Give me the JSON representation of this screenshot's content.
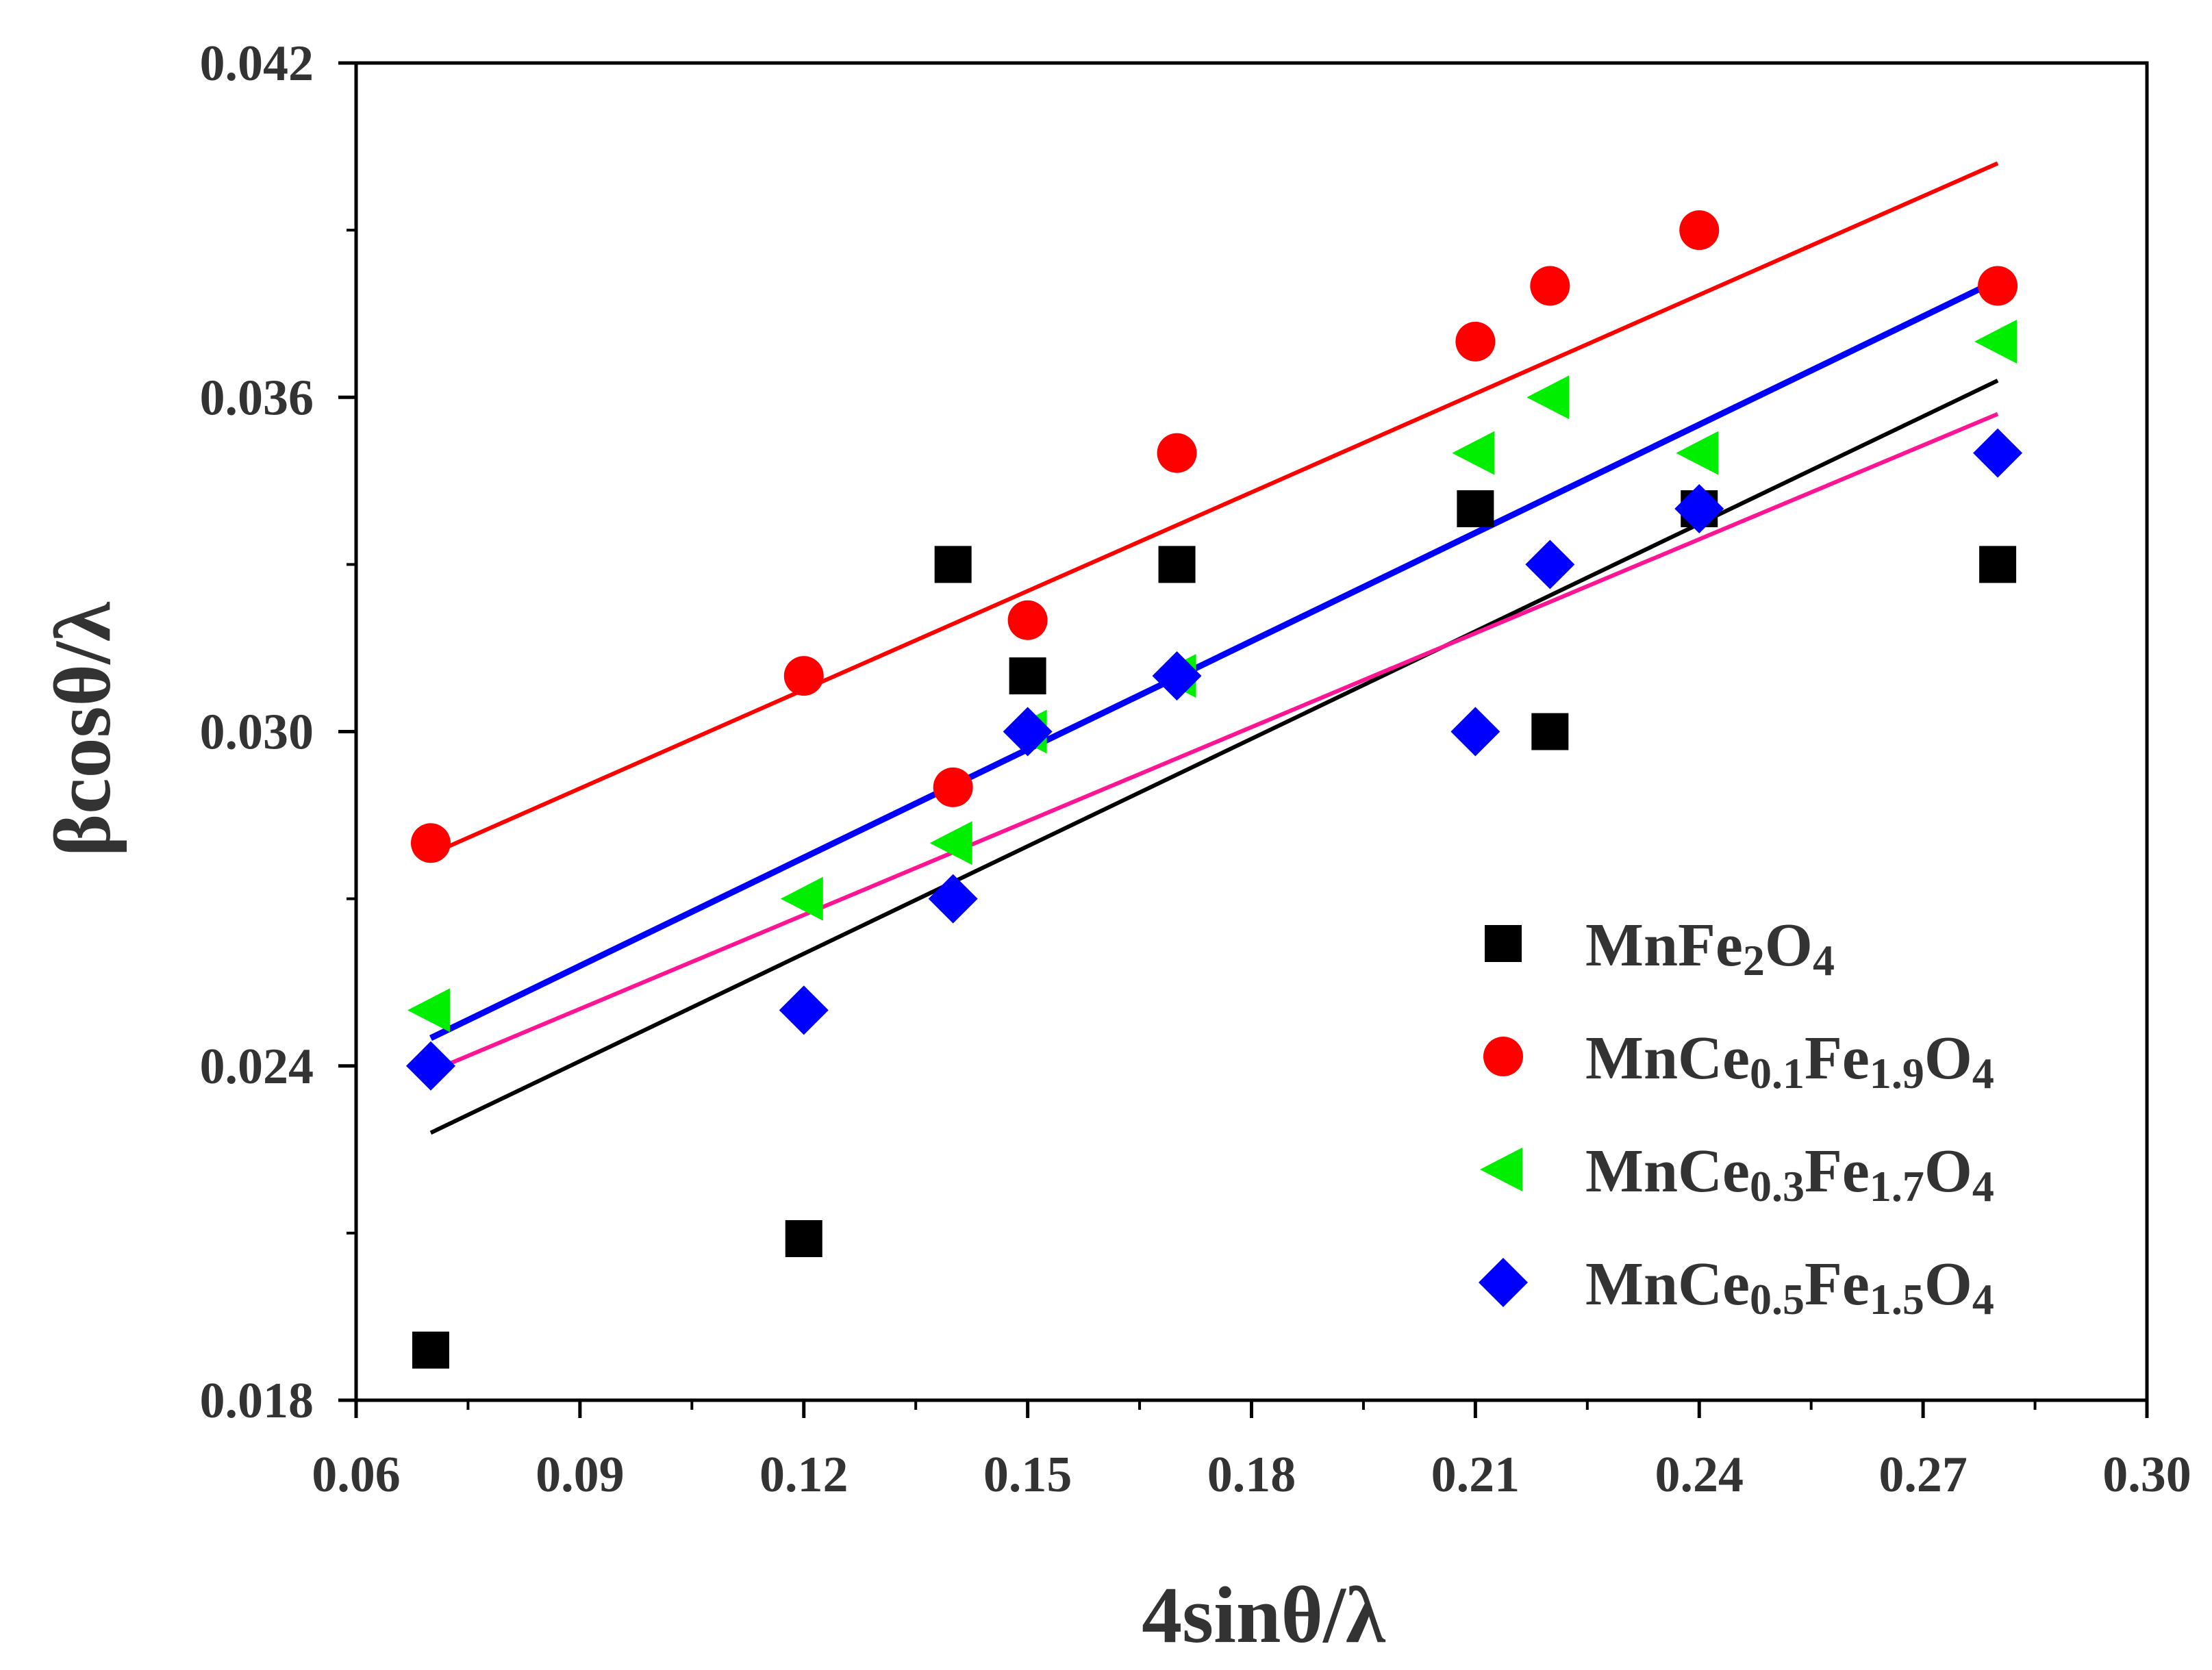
{
  "chart_data": {
    "type": "scatter",
    "title": "",
    "xlabel": "4sinθ/λ",
    "ylabel": "βcosθ/λ",
    "xlim": [
      0.06,
      0.3
    ],
    "ylim": [
      0.018,
      0.042
    ],
    "xticks": [
      "0.06",
      "0.09",
      "0.12",
      "0.15",
      "0.18",
      "0.21",
      "0.24",
      "0.27",
      "0.30"
    ],
    "yticks": [
      "0.018",
      "0.024",
      "0.030",
      "0.036",
      "0.042"
    ],
    "grid": false,
    "legend_position": "bottom-right",
    "series": [
      {
        "name": "MnFe2O4",
        "legend_parts": [
          [
            "MnFe",
            ""
          ],
          [
            "2",
            "sub"
          ],
          [
            "O",
            ""
          ],
          [
            "4",
            "sub"
          ]
        ],
        "marker": "square",
        "color": "#000000",
        "x": [
          0.07,
          0.12,
          0.14,
          0.15,
          0.17,
          0.21,
          0.22,
          0.24,
          0.28
        ],
        "y": [
          0.0189,
          0.0209,
          0.033,
          0.031,
          0.033,
          0.034,
          0.03,
          0.034,
          0.033
        ],
        "fit": {
          "color": "#000000",
          "x": [
            0.07,
            0.28
          ],
          "y": [
            0.0228,
            0.0363
          ]
        }
      },
      {
        "name": "MnCe0.1Fe1.9O4",
        "legend_parts": [
          [
            "MnCe",
            ""
          ],
          [
            "0.1",
            "sub"
          ],
          [
            "Fe",
            ""
          ],
          [
            "1.9",
            "sub"
          ],
          [
            "O",
            ""
          ],
          [
            "4",
            "sub"
          ]
        ],
        "marker": "circle",
        "color": "#ff0000",
        "x": [
          0.07,
          0.12,
          0.14,
          0.15,
          0.17,
          0.21,
          0.22,
          0.24,
          0.28
        ],
        "y": [
          0.028,
          0.031,
          0.029,
          0.032,
          0.035,
          0.037,
          0.038,
          0.039,
          0.038
        ],
        "fit": {
          "color": "#ff0000",
          "x": [
            0.07,
            0.28
          ],
          "y": [
            0.0278,
            0.0402
          ]
        }
      },
      {
        "name": "MnCe0.3Fe1.7O4",
        "legend_parts": [
          [
            "MnCe",
            ""
          ],
          [
            "0.3",
            "sub"
          ],
          [
            "Fe",
            ""
          ],
          [
            "1.7",
            "sub"
          ],
          [
            "O",
            ""
          ],
          [
            "4",
            "sub"
          ]
        ],
        "marker": "triangle-left",
        "color": "#00ee00",
        "x": [
          0.07,
          0.12,
          0.14,
          0.15,
          0.17,
          0.21,
          0.22,
          0.24,
          0.28
        ],
        "y": [
          0.025,
          0.027,
          0.028,
          0.03,
          0.031,
          0.035,
          0.036,
          0.035,
          0.037
        ],
        "fit": {
          "color": "#ff1493",
          "x": [
            0.07,
            0.28
          ],
          "y": [
            0.0239,
            0.0357
          ]
        }
      },
      {
        "name": "MnCe0.5Fe1.5O4",
        "legend_parts": [
          [
            "MnCe",
            ""
          ],
          [
            "0.5",
            "sub"
          ],
          [
            "Fe",
            ""
          ],
          [
            "1.5",
            "sub"
          ],
          [
            "O",
            ""
          ],
          [
            "4",
            "sub"
          ]
        ],
        "marker": "diamond",
        "color": "#0000ff",
        "x": [
          0.07,
          0.12,
          0.14,
          0.15,
          0.17,
          0.21,
          0.22,
          0.24,
          0.28
        ],
        "y": [
          0.024,
          0.025,
          0.027,
          0.03,
          0.031,
          0.03,
          0.033,
          0.034,
          0.035
        ],
        "fit": {
          "color": "#0000ff",
          "x": [
            0.07,
            0.28
          ],
          "y": [
            0.0245,
            0.0381
          ]
        }
      }
    ]
  }
}
